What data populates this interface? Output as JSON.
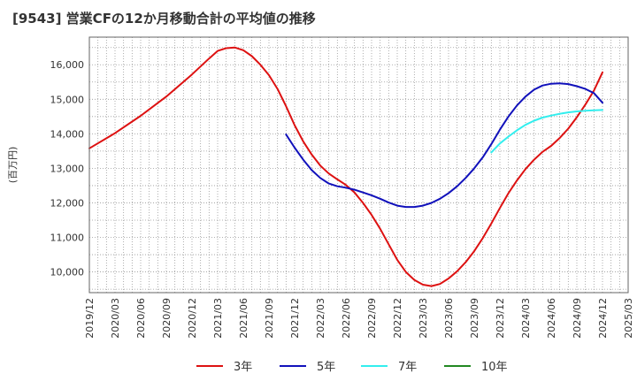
{
  "title": "[9543]  営業CFの12か月移動合計の平均値の推移",
  "chart_data": {
    "type": "line",
    "title": "[9543]  営業CFの12か月移動合計の平均値の推移",
    "ylabel": "(百万円)",
    "xlabel": "",
    "ylim": [
      9400,
      16800
    ],
    "yticks": [
      10000,
      11000,
      12000,
      13000,
      14000,
      15000,
      16000
    ],
    "ytick_labels": [
      "10,000",
      "11,000",
      "12,000",
      "13,000",
      "14,000",
      "15,000",
      "16,000"
    ],
    "xlim": [
      "2019-12",
      "2025-03"
    ],
    "xtick_labels": [
      "2019/12",
      "2020/03",
      "2020/06",
      "2020/09",
      "2020/12",
      "2021/03",
      "2021/06",
      "2021/09",
      "2021/12",
      "2022/03",
      "2022/06",
      "2022/09",
      "2022/12",
      "2023/03",
      "2023/06",
      "2023/09",
      "2023/12",
      "2024/03",
      "2024/06",
      "2024/09",
      "2024/12",
      "2025/03"
    ],
    "grid": true,
    "legend_position": "bottom",
    "series": [
      {
        "name": "3年",
        "color": "#dd1111",
        "points": [
          [
            "2019-12",
            13580
          ],
          [
            "2020-03",
            14020
          ],
          [
            "2020-06",
            14520
          ],
          [
            "2020-09",
            15080
          ],
          [
            "2020-12",
            15720
          ],
          [
            "2021-02",
            16180
          ],
          [
            "2021-03",
            16400
          ],
          [
            "2021-04",
            16480
          ],
          [
            "2021-05",
            16500
          ],
          [
            "2021-06",
            16420
          ],
          [
            "2021-07",
            16250
          ],
          [
            "2021-08",
            16000
          ],
          [
            "2021-09",
            15700
          ],
          [
            "2021-10",
            15300
          ],
          [
            "2021-11",
            14800
          ],
          [
            "2021-12",
            14250
          ],
          [
            "2022-01",
            13780
          ],
          [
            "2022-02",
            13400
          ],
          [
            "2022-03",
            13080
          ],
          [
            "2022-04",
            12850
          ],
          [
            "2022-05",
            12680
          ],
          [
            "2022-06",
            12520
          ],
          [
            "2022-07",
            12300
          ],
          [
            "2022-08",
            12000
          ],
          [
            "2022-09",
            11650
          ],
          [
            "2022-10",
            11250
          ],
          [
            "2022-11",
            10800
          ],
          [
            "2022-12",
            10350
          ],
          [
            "2023-01",
            10000
          ],
          [
            "2023-02",
            9770
          ],
          [
            "2023-03",
            9630
          ],
          [
            "2023-04",
            9590
          ],
          [
            "2023-05",
            9650
          ],
          [
            "2023-06",
            9810
          ],
          [
            "2023-07",
            10020
          ],
          [
            "2023-08",
            10280
          ],
          [
            "2023-09",
            10600
          ],
          [
            "2023-10",
            10980
          ],
          [
            "2023-11",
            11400
          ],
          [
            "2023-12",
            11850
          ],
          [
            "2024-01",
            12280
          ],
          [
            "2024-02",
            12650
          ],
          [
            "2024-03",
            12980
          ],
          [
            "2024-04",
            13250
          ],
          [
            "2024-05",
            13480
          ],
          [
            "2024-06",
            13650
          ],
          [
            "2024-07",
            13880
          ],
          [
            "2024-08",
            14150
          ],
          [
            "2024-09",
            14480
          ],
          [
            "2024-10",
            14850
          ],
          [
            "2024-11",
            15250
          ],
          [
            "2024-12",
            15780
          ]
        ]
      },
      {
        "name": "5年",
        "color": "#1111bb",
        "points": [
          [
            "2021-11",
            13980
          ],
          [
            "2021-12",
            13600
          ],
          [
            "2022-01",
            13250
          ],
          [
            "2022-02",
            12950
          ],
          [
            "2022-03",
            12720
          ],
          [
            "2022-04",
            12560
          ],
          [
            "2022-05",
            12480
          ],
          [
            "2022-06",
            12440
          ],
          [
            "2022-07",
            12380
          ],
          [
            "2022-08",
            12300
          ],
          [
            "2022-09",
            12220
          ],
          [
            "2022-10",
            12120
          ],
          [
            "2022-11",
            12010
          ],
          [
            "2022-12",
            11920
          ],
          [
            "2023-01",
            11880
          ],
          [
            "2023-02",
            11880
          ],
          [
            "2023-03",
            11920
          ],
          [
            "2023-04",
            12000
          ],
          [
            "2023-05",
            12120
          ],
          [
            "2023-06",
            12280
          ],
          [
            "2023-07",
            12480
          ],
          [
            "2023-08",
            12720
          ],
          [
            "2023-09",
            13000
          ],
          [
            "2023-10",
            13320
          ],
          [
            "2023-11",
            13700
          ],
          [
            "2023-12",
            14120
          ],
          [
            "2024-01",
            14500
          ],
          [
            "2024-02",
            14820
          ],
          [
            "2024-03",
            15080
          ],
          [
            "2024-04",
            15280
          ],
          [
            "2024-05",
            15400
          ],
          [
            "2024-06",
            15450
          ],
          [
            "2024-07",
            15460
          ],
          [
            "2024-08",
            15440
          ],
          [
            "2024-09",
            15380
          ],
          [
            "2024-10",
            15300
          ],
          [
            "2024-11",
            15180
          ],
          [
            "2024-12",
            14900
          ]
        ]
      },
      {
        "name": "7年",
        "color": "#33eeee",
        "points": [
          [
            "2023-11",
            13460
          ],
          [
            "2023-12",
            13720
          ],
          [
            "2024-01",
            13920
          ],
          [
            "2024-02",
            14100
          ],
          [
            "2024-03",
            14260
          ],
          [
            "2024-04",
            14380
          ],
          [
            "2024-05",
            14470
          ],
          [
            "2024-06",
            14530
          ],
          [
            "2024-07",
            14580
          ],
          [
            "2024-08",
            14620
          ],
          [
            "2024-09",
            14650
          ],
          [
            "2024-10",
            14670
          ],
          [
            "2024-11",
            14680
          ],
          [
            "2024-12",
            14690
          ]
        ]
      },
      {
        "name": "10年",
        "color": "#228822",
        "points": []
      }
    ]
  }
}
